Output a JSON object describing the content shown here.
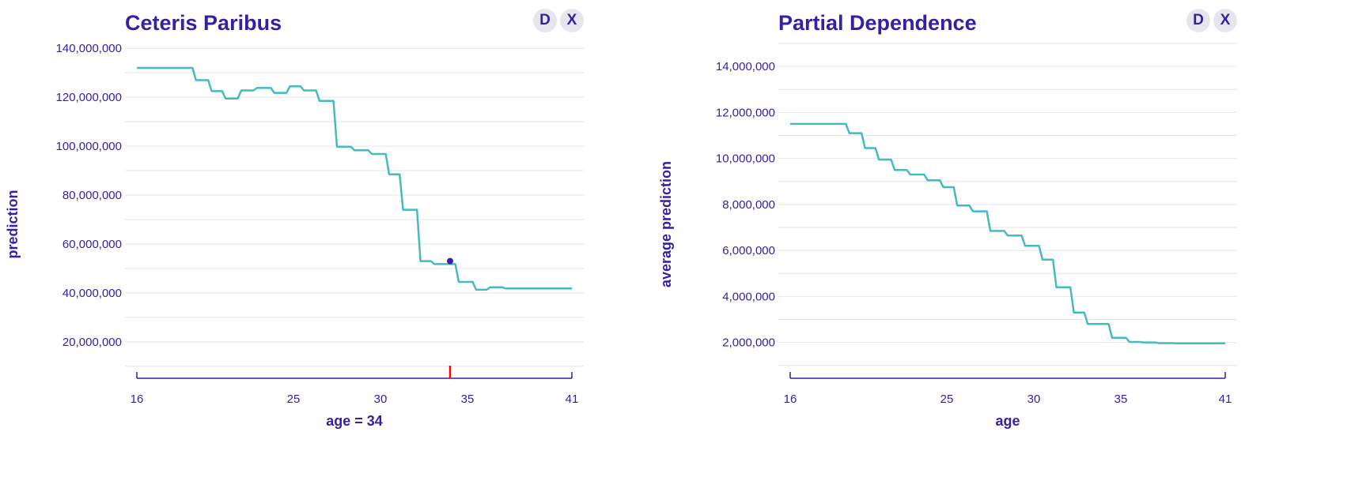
{
  "colors": {
    "line": "#46bac2",
    "text": "#371ea3",
    "grid": "#e4e4ec",
    "observation": "#371ea3",
    "rug": "#ff0000"
  },
  "buttons": {
    "d_label": "D",
    "x_label": "X"
  },
  "chart_data": [
    {
      "type": "line",
      "title": "Ceteris Paribus",
      "xlabel": "age = 34",
      "ylabel": "prediction",
      "xlim": [
        16,
        41
      ],
      "ylim": [
        8000000,
        142000000
      ],
      "xticks": [
        16,
        25,
        30,
        35,
        41
      ],
      "xtick_labels": [
        "16",
        "25",
        "30",
        "35",
        "41"
      ],
      "yticks": [
        20000000,
        40000000,
        60000000,
        80000000,
        100000000,
        120000000,
        140000000
      ],
      "ytick_labels": [
        "20,000,000",
        "40,000,000",
        "60,000,000",
        "80,000,000",
        "100,000,000",
        "120,000,000",
        "140,000,000"
      ],
      "grid": true,
      "series": [
        {
          "name": "prediction",
          "x": [
            16,
            19.2,
            19.4,
            20.1,
            20.3,
            20.9,
            21.1,
            21.8,
            22,
            22.7,
            22.9,
            23.7,
            23.9,
            24.6,
            24.8,
            25.4,
            25.6,
            26.3,
            26.5,
            27.3,
            27.5,
            28.3,
            28.5,
            29.3,
            29.5,
            30.3,
            30.5,
            31.1,
            31.3,
            32.1,
            32.3,
            32.9,
            33.1,
            34.3,
            34.5,
            35.3,
            35.5,
            36.1,
            36.3,
            37,
            37.2,
            38,
            38.2,
            41
          ],
          "y": [
            132000000,
            132000000,
            127000000,
            127000000,
            122500000,
            122500000,
            119500000,
            119500000,
            122800000,
            122800000,
            123800000,
            123800000,
            121800000,
            121800000,
            124500000,
            124500000,
            122800000,
            122800000,
            118500000,
            118500000,
            99800000,
            99800000,
            98300000,
            98300000,
            96800000,
            96800000,
            88500000,
            88500000,
            74000000,
            74000000,
            53000000,
            53000000,
            51800000,
            51800000,
            44500000,
            44500000,
            41300000,
            41300000,
            42300000,
            42300000,
            41800000,
            41800000,
            41800000,
            41800000
          ]
        }
      ],
      "observation": {
        "x": 34,
        "y": 53000000
      },
      "rug": [
        34
      ]
    },
    {
      "type": "line",
      "title": "Partial Dependence",
      "xlabel": "age",
      "ylabel": "average prediction",
      "xlim": [
        16,
        41
      ],
      "ylim": [
        750000,
        15000000
      ],
      "xticks": [
        16,
        25,
        30,
        35,
        41
      ],
      "xtick_labels": [
        "16",
        "25",
        "30",
        "35",
        "41"
      ],
      "yticks": [
        2000000,
        4000000,
        6000000,
        8000000,
        10000000,
        12000000,
        14000000
      ],
      "ytick_labels": [
        "2,000,000",
        "4,000,000",
        "6,000,000",
        "8,000,000",
        "10,000,000",
        "12,000,000",
        "14,000,000"
      ],
      "grid": true,
      "series": [
        {
          "name": "average prediction",
          "x": [
            16,
            19.2,
            19.4,
            20.1,
            20.3,
            20.9,
            21.1,
            21.8,
            22,
            22.7,
            22.9,
            23.7,
            23.9,
            24.6,
            24.8,
            25.4,
            25.6,
            26.3,
            26.5,
            27.3,
            27.5,
            28.3,
            28.5,
            29.3,
            29.5,
            30.3,
            30.5,
            31.1,
            31.3,
            32.1,
            32.3,
            32.9,
            33.1,
            34.3,
            34.5,
            35.3,
            35.5,
            36.1,
            36.3,
            37,
            37.2,
            38,
            38.2,
            41
          ],
          "y": [
            11500000,
            11500000,
            11100000,
            11100000,
            10450000,
            10450000,
            9950000,
            9950000,
            9500000,
            9500000,
            9300000,
            9300000,
            9050000,
            9050000,
            8750000,
            8750000,
            7950000,
            7950000,
            7700000,
            7700000,
            6850000,
            6850000,
            6650000,
            6650000,
            6200000,
            6200000,
            5600000,
            5600000,
            4400000,
            4400000,
            3300000,
            3300000,
            2800000,
            2800000,
            2200000,
            2200000,
            2020000,
            2020000,
            2000000,
            2000000,
            1970000,
            1970000,
            1960000,
            1960000
          ]
        }
      ],
      "observation": null,
      "rug": []
    }
  ]
}
